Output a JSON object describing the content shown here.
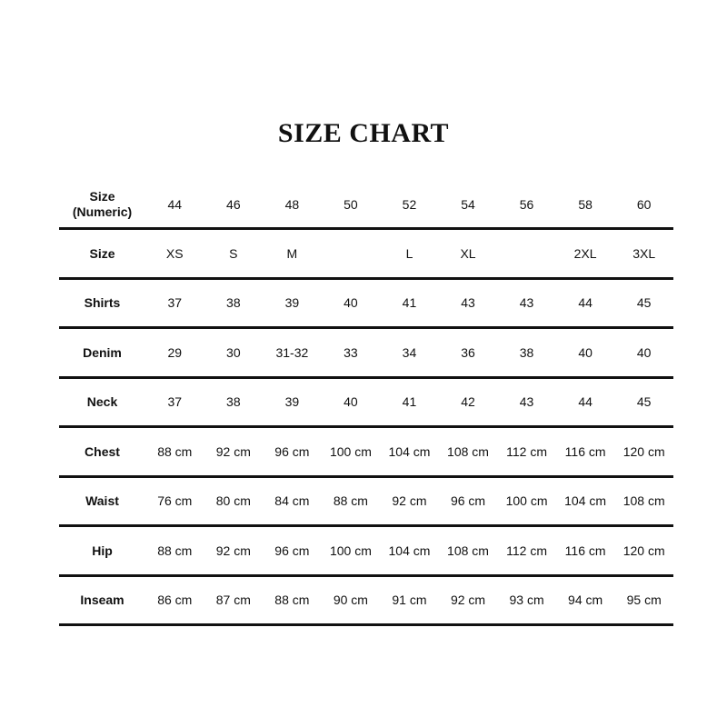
{
  "title": "SIZE CHART",
  "header": {
    "label": "Size\n(Numeric)",
    "values": [
      "44",
      "46",
      "48",
      "50",
      "52",
      "54",
      "56",
      "58",
      "60"
    ]
  },
  "rows": [
    {
      "label": "Size",
      "values": [
        "XS",
        "S",
        "M",
        "",
        "L",
        "XL",
        "",
        "2XL",
        "3XL"
      ]
    },
    {
      "label": "Shirts",
      "values": [
        "37",
        "38",
        "39",
        "40",
        "41",
        "43",
        "43",
        "44",
        "45"
      ]
    },
    {
      "label": "Denim",
      "values": [
        "29",
        "30",
        "31-32",
        "33",
        "34",
        "36",
        "38",
        "40",
        "40"
      ]
    },
    {
      "label": "Neck",
      "values": [
        "37",
        "38",
        "39",
        "40",
        "41",
        "42",
        "43",
        "44",
        "45"
      ]
    },
    {
      "label": "Chest",
      "values": [
        "88 cm",
        "92 cm",
        "96 cm",
        "100 cm",
        "104 cm",
        "108 cm",
        "112 cm",
        "116 cm",
        "120 cm"
      ]
    },
    {
      "label": "Waist",
      "values": [
        "76 cm",
        "80 cm",
        "84 cm",
        "88 cm",
        "92 cm",
        "96 cm",
        "100 cm",
        "104 cm",
        "108 cm"
      ]
    },
    {
      "label": "Hip",
      "values": [
        "88 cm",
        "92 cm",
        "96 cm",
        "100 cm",
        "104 cm",
        "108 cm",
        "112 cm",
        "116 cm",
        "120 cm"
      ]
    },
    {
      "label": "Inseam",
      "values": [
        "86 cm",
        "87 cm",
        "88 cm",
        "90 cm",
        "91 cm",
        "92 cm",
        "93 cm",
        "94 cm",
        "95 cm"
      ]
    }
  ]
}
